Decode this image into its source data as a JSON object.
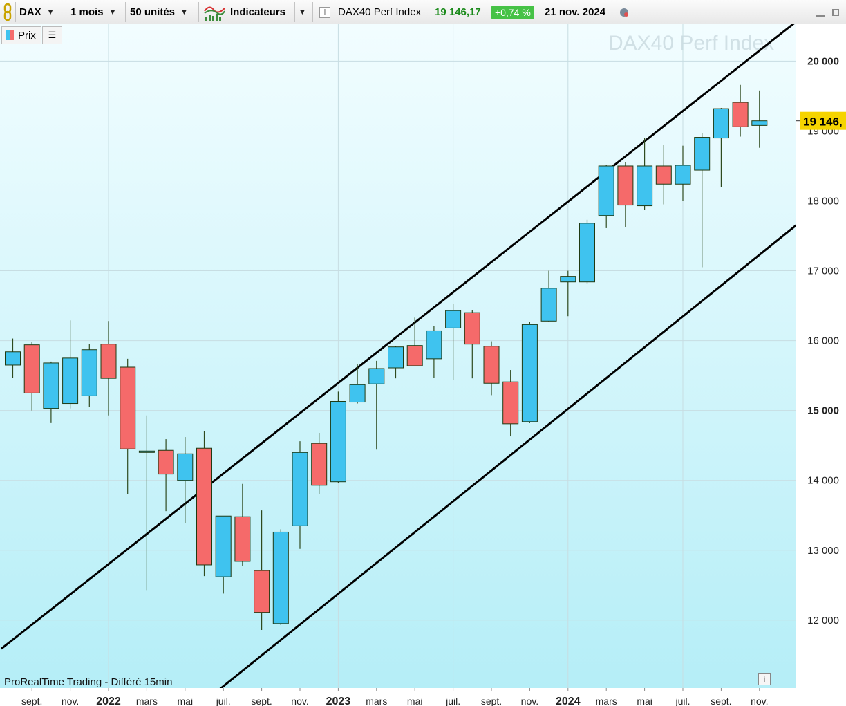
{
  "toolbar": {
    "symbol": "DAX",
    "period": "1 mois",
    "units": "50 unités",
    "indicators_label": "Indicateurs",
    "instrument_name": "DAX40 Perf Index",
    "last_price": "19 146,17",
    "change": "+0,74 %",
    "date": "21 nov. 2024"
  },
  "legend": {
    "prix_label": "Prix"
  },
  "watermark": "DAX40 Perf Index",
  "footer": "ProRealTime Trading - Différé 15min",
  "colors": {
    "up": "#3fc3ef",
    "down": "#f56a6a",
    "channel": "#000000",
    "price_tag": "#f5d400"
  },
  "chart_data": {
    "type": "candlestick",
    "title": "DAX40 Perf Index",
    "interval": "1 mois",
    "ylim": [
      10900,
      20500
    ],
    "y_ticks": [
      12000,
      13000,
      14000,
      15000,
      16000,
      17000,
      18000,
      19000,
      20000
    ],
    "y_tick_labels": [
      "12 000",
      "13 000",
      "14 000",
      "15 000",
      "16 000",
      "17 000",
      "18 000",
      "19 000",
      "20 000"
    ],
    "current_price_label": "19 146,",
    "x_labels": [
      {
        "i": 1,
        "label": "sept.",
        "bold": false
      },
      {
        "i": 3,
        "label": "nov.",
        "bold": false
      },
      {
        "i": 5,
        "label": "2022",
        "bold": true
      },
      {
        "i": 7,
        "label": "mars",
        "bold": false
      },
      {
        "i": 9,
        "label": "mai",
        "bold": false
      },
      {
        "i": 11,
        "label": "juil.",
        "bold": false
      },
      {
        "i": 13,
        "label": "sept.",
        "bold": false
      },
      {
        "i": 15,
        "label": "nov.",
        "bold": false
      },
      {
        "i": 17,
        "label": "2023",
        "bold": true
      },
      {
        "i": 19,
        "label": "mars",
        "bold": false
      },
      {
        "i": 21,
        "label": "mai",
        "bold": false
      },
      {
        "i": 23,
        "label": "juil.",
        "bold": false
      },
      {
        "i": 25,
        "label": "sept.",
        "bold": false
      },
      {
        "i": 27,
        "label": "nov.",
        "bold": false
      },
      {
        "i": 29,
        "label": "2024",
        "bold": true
      },
      {
        "i": 31,
        "label": "mars",
        "bold": false
      },
      {
        "i": 33,
        "label": "mai",
        "bold": false
      },
      {
        "i": 35,
        "label": "juil.",
        "bold": false
      },
      {
        "i": 37,
        "label": "sept.",
        "bold": false
      },
      {
        "i": 39,
        "label": "nov.",
        "bold": false
      }
    ],
    "candles": [
      {
        "o": 15650,
        "h": 16030,
        "l": 15470,
        "c": 15840
      },
      {
        "o": 15940,
        "h": 15980,
        "l": 15000,
        "c": 15250
      },
      {
        "o": 15030,
        "h": 15700,
        "l": 14820,
        "c": 15680
      },
      {
        "o": 15100,
        "h": 16290,
        "l": 15030,
        "c": 15750
      },
      {
        "o": 15210,
        "h": 15950,
        "l": 15050,
        "c": 15870
      },
      {
        "o": 15950,
        "h": 16280,
        "l": 14930,
        "c": 15460
      },
      {
        "o": 15620,
        "h": 15740,
        "l": 13800,
        "c": 14450
      },
      {
        "o": 14400,
        "h": 14930,
        "l": 12430,
        "c": 14420
      },
      {
        "o": 14430,
        "h": 14590,
        "l": 13560,
        "c": 14090
      },
      {
        "o": 14000,
        "h": 14620,
        "l": 13390,
        "c": 14380
      },
      {
        "o": 14460,
        "h": 14700,
        "l": 12630,
        "c": 12790
      },
      {
        "o": 12620,
        "h": 13480,
        "l": 12380,
        "c": 13490
      },
      {
        "o": 13480,
        "h": 13950,
        "l": 12780,
        "c": 12840
      },
      {
        "o": 12710,
        "h": 13570,
        "l": 11860,
        "c": 12110
      },
      {
        "o": 11950,
        "h": 13300,
        "l": 11930,
        "c": 13260
      },
      {
        "o": 13350,
        "h": 14560,
        "l": 13020,
        "c": 14400
      },
      {
        "o": 14530,
        "h": 14680,
        "l": 13800,
        "c": 13930
      },
      {
        "o": 13980,
        "h": 15270,
        "l": 13960,
        "c": 15130
      },
      {
        "o": 15120,
        "h": 15660,
        "l": 15100,
        "c": 15370
      },
      {
        "o": 15380,
        "h": 15710,
        "l": 14440,
        "c": 15600
      },
      {
        "o": 15610,
        "h": 15920,
        "l": 15460,
        "c": 15910
      },
      {
        "o": 15930,
        "h": 16330,
        "l": 15630,
        "c": 15640
      },
      {
        "o": 15740,
        "h": 16210,
        "l": 15470,
        "c": 16140
      },
      {
        "o": 16180,
        "h": 16530,
        "l": 15440,
        "c": 16430
      },
      {
        "o": 16400,
        "h": 16440,
        "l": 15460,
        "c": 15950
      },
      {
        "o": 15920,
        "h": 15990,
        "l": 15220,
        "c": 15390
      },
      {
        "o": 15410,
        "h": 15580,
        "l": 14630,
        "c": 14810
      },
      {
        "o": 14840,
        "h": 16270,
        "l": 14820,
        "c": 16230
      },
      {
        "o": 16280,
        "h": 17000,
        "l": 16270,
        "c": 16750
      },
      {
        "o": 16840,
        "h": 17000,
        "l": 16350,
        "c": 16920
      },
      {
        "o": 16840,
        "h": 17730,
        "l": 16820,
        "c": 17680
      },
      {
        "o": 17790,
        "h": 18510,
        "l": 17610,
        "c": 18500
      },
      {
        "o": 18500,
        "h": 18550,
        "l": 17620,
        "c": 17940
      },
      {
        "o": 17930,
        "h": 18900,
        "l": 17870,
        "c": 18500
      },
      {
        "o": 18500,
        "h": 18800,
        "l": 17950,
        "c": 18240
      },
      {
        "o": 18240,
        "h": 18790,
        "l": 18000,
        "c": 18510
      },
      {
        "o": 18440,
        "h": 18970,
        "l": 17050,
        "c": 18910
      },
      {
        "o": 18900,
        "h": 19330,
        "l": 18200,
        "c": 19320
      },
      {
        "o": 19410,
        "h": 19660,
        "l": 18920,
        "c": 19060
      },
      {
        "o": 19080,
        "h": 19580,
        "l": 18760,
        "c": 19146
      }
    ],
    "channel_lines": [
      {
        "name": "upper",
        "from": {
          "i": -0.6,
          "y": 11590
        },
        "to": {
          "i": 40.8,
          "y": 20540
        }
      },
      {
        "name": "lower",
        "from": {
          "i": 10.3,
          "y": 10900
        },
        "to": {
          "i": 41.5,
          "y": 17780
        }
      }
    ]
  }
}
